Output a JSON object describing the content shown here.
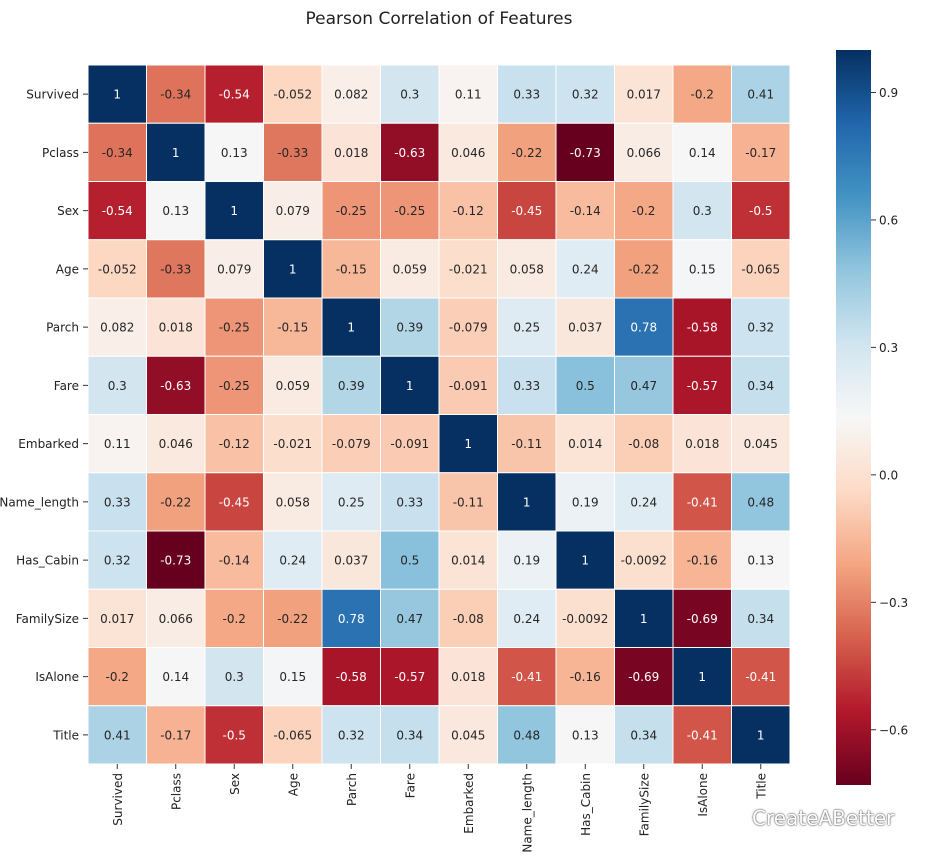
{
  "chart_data": {
    "type": "heatmap",
    "title": "Pearson Correlation of Features",
    "labels": [
      "Survived",
      "Pclass",
      "Sex",
      "Age",
      "Parch",
      "Fare",
      "Embarked",
      "Name_length",
      "Has_Cabin",
      "FamilySize",
      "IsAlone",
      "Title"
    ],
    "matrix": [
      [
        "1",
        "-0.34",
        "-0.54",
        "-0.052",
        "0.082",
        "0.3",
        "0.11",
        "0.33",
        "0.32",
        "0.017",
        "-0.2",
        "0.41"
      ],
      [
        "-0.34",
        "1",
        "0.13",
        "-0.33",
        "0.018",
        "-0.63",
        "0.046",
        "-0.22",
        "-0.73",
        "0.066",
        "0.14",
        "-0.17"
      ],
      [
        "-0.54",
        "0.13",
        "1",
        "0.079",
        "-0.25",
        "-0.25",
        "-0.12",
        "-0.45",
        "-0.14",
        "-0.2",
        "0.3",
        "-0.5"
      ],
      [
        "-0.052",
        "-0.33",
        "0.079",
        "1",
        "-0.15",
        "0.059",
        "-0.021",
        "0.058",
        "0.24",
        "-0.22",
        "0.15",
        "-0.065"
      ],
      [
        "0.082",
        "0.018",
        "-0.25",
        "-0.15",
        "1",
        "0.39",
        "-0.079",
        "0.25",
        "0.037",
        "0.78",
        "-0.58",
        "0.32"
      ],
      [
        "0.3",
        "-0.63",
        "-0.25",
        "0.059",
        "0.39",
        "1",
        "-0.091",
        "0.33",
        "0.5",
        "0.47",
        "-0.57",
        "0.34"
      ],
      [
        "0.11",
        "0.046",
        "-0.12",
        "-0.021",
        "-0.079",
        "-0.091",
        "1",
        "-0.11",
        "0.014",
        "-0.08",
        "0.018",
        "0.045"
      ],
      [
        "0.33",
        "-0.22",
        "-0.45",
        "0.058",
        "0.25",
        "0.33",
        "-0.11",
        "1",
        "0.19",
        "0.24",
        "-0.41",
        "0.48"
      ],
      [
        "0.32",
        "-0.73",
        "-0.14",
        "0.24",
        "0.037",
        "0.5",
        "0.014",
        "0.19",
        "1",
        "-0.0092",
        "-0.16",
        "0.13"
      ],
      [
        "0.017",
        "0.066",
        "-0.2",
        "-0.22",
        "0.78",
        "0.47",
        "-0.08",
        "0.24",
        "-0.0092",
        "1",
        "-0.69",
        "0.34"
      ],
      [
        "-0.2",
        "0.14",
        "0.3",
        "0.15",
        "-0.58",
        "-0.57",
        "0.018",
        "-0.41",
        "-0.16",
        "-0.69",
        "1",
        "-0.41"
      ],
      [
        "0.41",
        "-0.17",
        "-0.5",
        "-0.065",
        "0.32",
        "0.34",
        "0.045",
        "0.48",
        "0.13",
        "0.34",
        "-0.41",
        "1"
      ]
    ],
    "colormap": "RdBu",
    "vmin": -0.73,
    "vmax": 1.0,
    "colorbar_ticks": [
      "0.9",
      "0.6",
      "0.3",
      "0.0",
      "−0.3",
      "−0.6"
    ],
    "grid": true,
    "legend": "colorbar-right"
  },
  "watermark": {
    "text": "CreateABetter",
    "icon": "chat-bubble-icon"
  }
}
